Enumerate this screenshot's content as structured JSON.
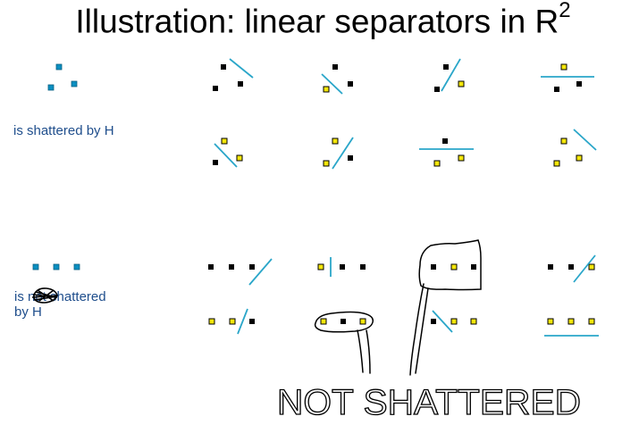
{
  "slide": {
    "title_main": "Illustration: linear separators in R",
    "title_sup": "2",
    "label_top": "is shattered by H",
    "label_bottom_is": "is",
    "label_bottom_struck": "not",
    "label_bottom_rest": "shattered",
    "label_bottom_by": "by H",
    "handwritten_note": "NOT SHATTERED"
  },
  "colors": {
    "blue_point": "#0a8fc1",
    "yellow_point": "#f4e60a",
    "black_point": "#000000",
    "separator_line": "#2aa6c9",
    "label_text": "#1f4e8c"
  }
}
